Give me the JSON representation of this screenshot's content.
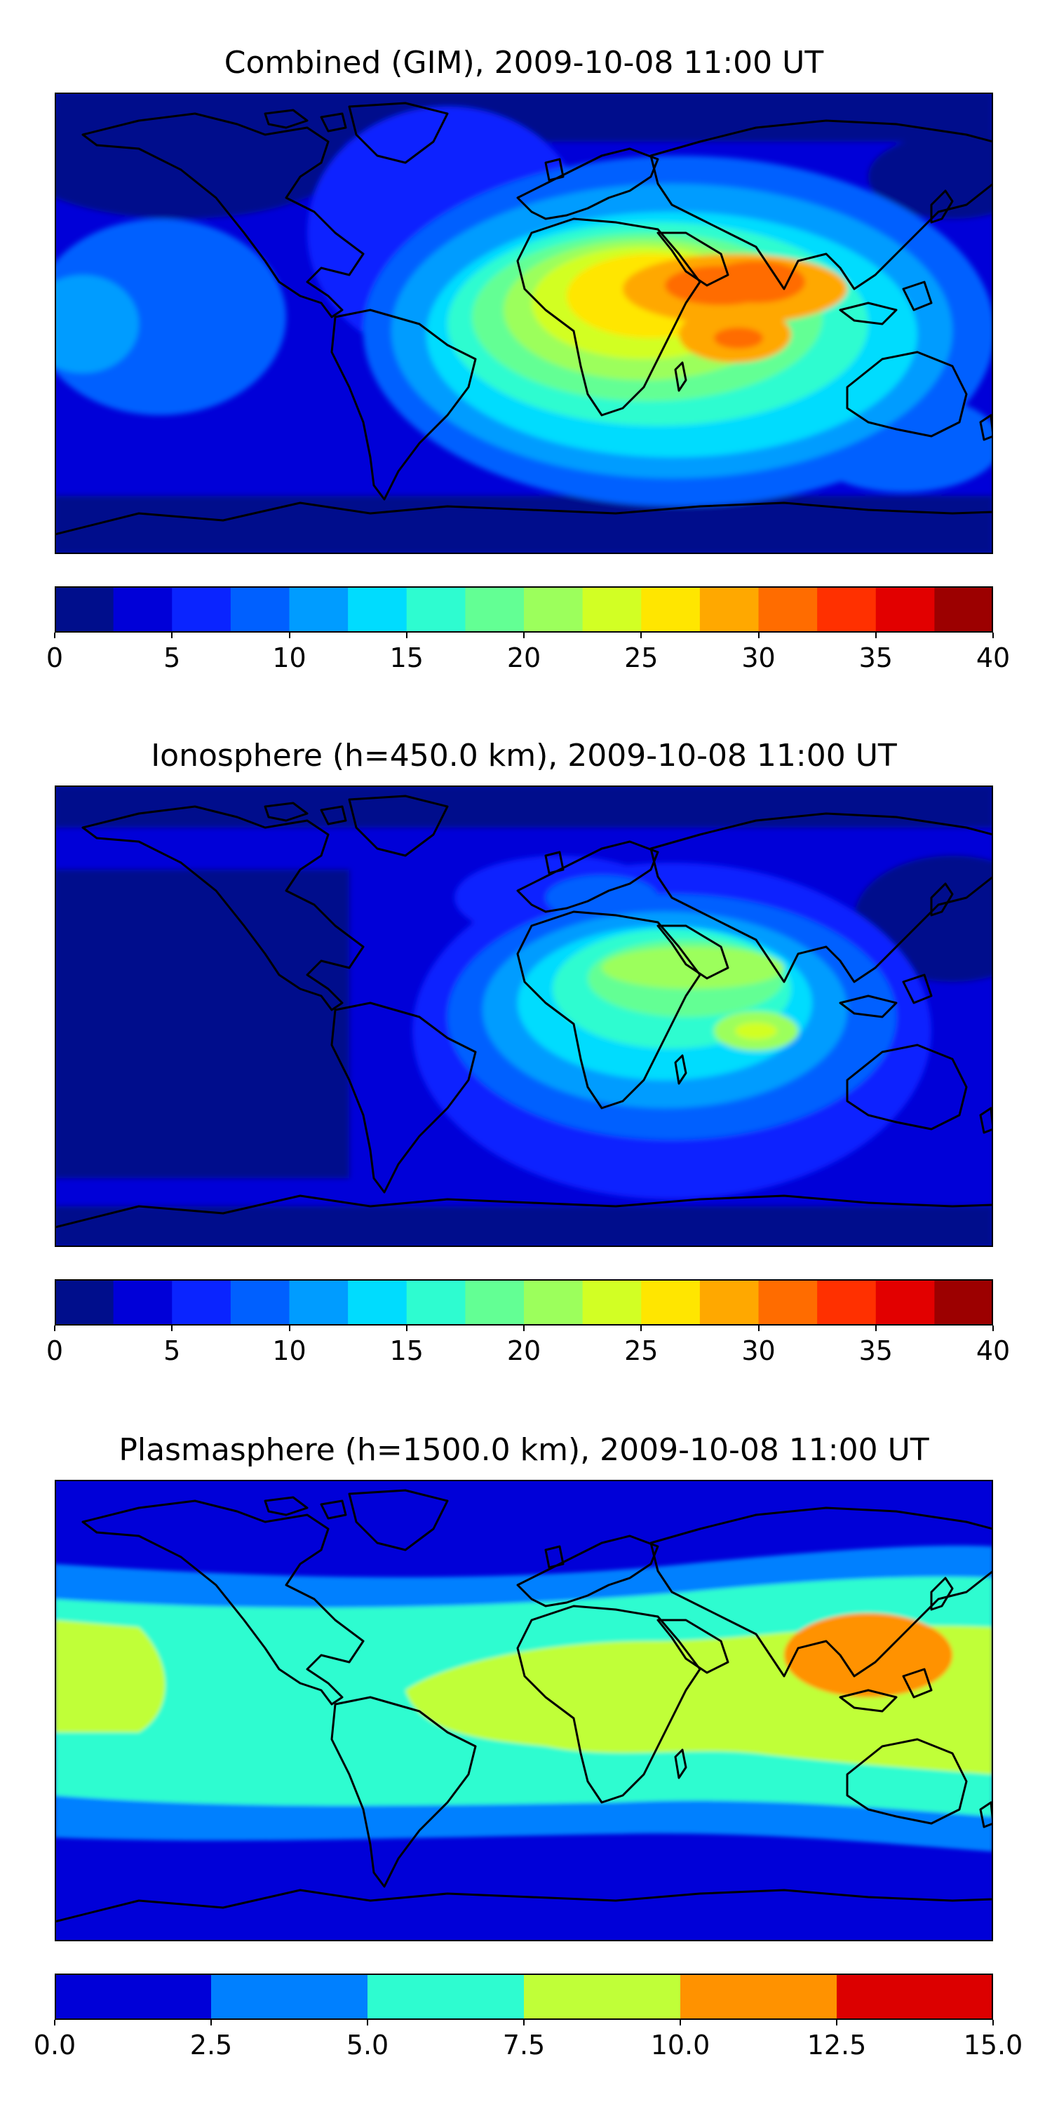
{
  "panels": [
    {
      "title": "Combined (GIM), 2009-10-08 11:00 UT",
      "colorbar": {
        "colors": [
          "#000e8c",
          "#0000d8",
          "#0a24ff",
          "#0060ff",
          "#009cff",
          "#00dcfe",
          "#2efcd0",
          "#63ff94",
          "#9cff5c",
          "#d2ff24",
          "#ffe600",
          "#ffa800",
          "#ff6c00",
          "#ff3000",
          "#e20000",
          "#9c0000"
        ],
        "ticks": [
          "0",
          "5",
          "10",
          "15",
          "20",
          "25",
          "30",
          "35",
          "40"
        ]
      }
    },
    {
      "title": "Ionosphere  (h=450.0 km), 2009-10-08 11:00 UT",
      "colorbar": {
        "colors": [
          "#000e8c",
          "#0000d8",
          "#0a24ff",
          "#0060ff",
          "#009cff",
          "#00dcfe",
          "#2efcd0",
          "#63ff94",
          "#9cff5c",
          "#d2ff24",
          "#ffe600",
          "#ffa800",
          "#ff6c00",
          "#ff3000",
          "#e20000",
          "#9c0000"
        ],
        "ticks": [
          "0",
          "5",
          "10",
          "15",
          "20",
          "25",
          "30",
          "35",
          "40"
        ]
      }
    },
    {
      "title": "Plasmasphere (h=1500.0 km), 2009-10-08 11:00 UT",
      "colorbar": {
        "colors": [
          "#0000d8",
          "#0080ff",
          "#2efcd0",
          "#c0ff38",
          "#ff9200",
          "#dc0000"
        ],
        "ticks": [
          "0.0",
          "2.5",
          "5.0",
          "7.5",
          "10.0",
          "12.5",
          "15.0"
        ]
      }
    }
  ]
}
